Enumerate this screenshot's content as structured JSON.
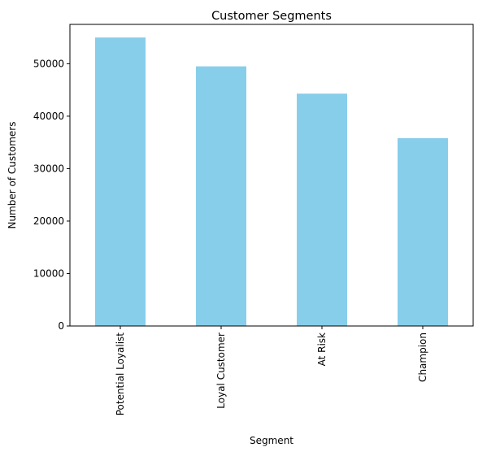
{
  "chart_data": {
    "type": "bar",
    "title": "Customer Segments",
    "xlabel": "Segment",
    "ylabel": "Number of Customers",
    "categories": [
      "Potential Loyalist",
      "Loyal Customer",
      "At Risk",
      "Champion"
    ],
    "values": [
      55000,
      49500,
      44300,
      35800
    ],
    "ylim": [
      0,
      57500
    ],
    "yticks": [
      0,
      10000,
      20000,
      30000,
      40000,
      50000
    ],
    "grid": false,
    "bar_color": "#87ceeb"
  }
}
